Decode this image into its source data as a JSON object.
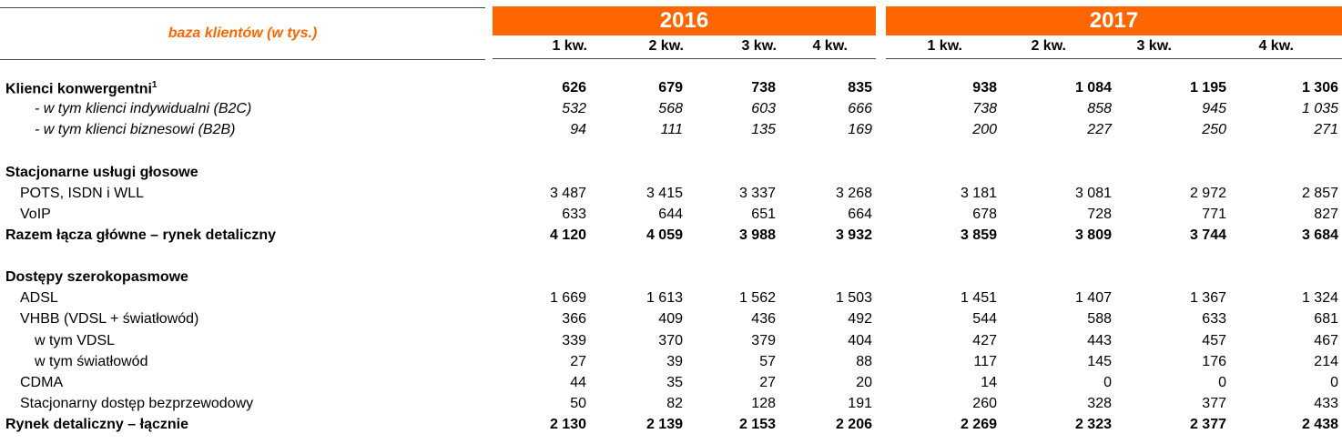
{
  "header": {
    "title": "baza klientów (w tys.)",
    "years": [
      "2016",
      "2017"
    ],
    "quarters": [
      "1 kw.",
      "2 kw.",
      "3 kw.",
      "4 kw.",
      "1 kw.",
      "2 kw.",
      "3 kw.",
      "4 kw."
    ]
  },
  "rows": [
    {
      "label": "Klienci konwergentni",
      "sup": "1",
      "style": "bold",
      "level": 0,
      "values": [
        "626",
        "679",
        "738",
        "835",
        "938",
        "1 084",
        "1 195",
        "1 306"
      ]
    },
    {
      "label": "- w tym klienci indywidualni (B2C)",
      "style": "italic",
      "level": 2,
      "values": [
        "532",
        "568",
        "603",
        "666",
        "738",
        "858",
        "945",
        "1 035"
      ]
    },
    {
      "label": "- w tym klienci biznesowi (B2B)",
      "style": "italic",
      "level": 2,
      "values": [
        "94",
        "111",
        "135",
        "169",
        "200",
        "227",
        "250",
        "271"
      ]
    },
    {
      "label": "Stacjonarne usługi głosowe",
      "style": "bold",
      "level": 0,
      "values": []
    },
    {
      "label": "POTS, ISDN i WLL",
      "style": "normal",
      "level": 1,
      "values": [
        "3 487",
        "3 415",
        "3 337",
        "3 268",
        "3 181",
        "3 081",
        "2 972",
        "2 857"
      ]
    },
    {
      "label": "VoIP",
      "style": "normal",
      "level": 1,
      "values": [
        "633",
        "644",
        "651",
        "664",
        "678",
        "728",
        "771",
        "827"
      ]
    },
    {
      "label": "Razem łącza główne – rynek detaliczny",
      "style": "bold",
      "level": 0,
      "values": [
        "4 120",
        "4 059",
        "3 988",
        "3 932",
        "3 859",
        "3 809",
        "3 744",
        "3 684"
      ]
    },
    {
      "label": "Dostępy szerokopasmowe",
      "style": "bold",
      "level": 0,
      "values": []
    },
    {
      "label": "ADSL",
      "style": "normal",
      "level": 1,
      "values": [
        "1 669",
        "1 613",
        "1 562",
        "1 503",
        "1 451",
        "1 407",
        "1 367",
        "1 324"
      ]
    },
    {
      "label": "VHBB (VDSL + światłowód)",
      "style": "normal",
      "level": 1,
      "values": [
        "366",
        "409",
        "436",
        "492",
        "544",
        "588",
        "633",
        "681"
      ]
    },
    {
      "label": "w tym VDSL",
      "style": "normal",
      "level": 2,
      "values": [
        "339",
        "370",
        "379",
        "404",
        "427",
        "443",
        "457",
        "467"
      ]
    },
    {
      "label": "w tym światłowód",
      "style": "normal",
      "level": 2,
      "values": [
        "27",
        "39",
        "57",
        "88",
        "117",
        "145",
        "176",
        "214"
      ]
    },
    {
      "label": "CDMA",
      "style": "normal",
      "level": 1,
      "values": [
        "44",
        "35",
        "27",
        "20",
        "14",
        "0",
        "0",
        "0"
      ]
    },
    {
      "label": "Stacjonarny dostęp bezprzewodowy",
      "style": "normal",
      "level": 1,
      "values": [
        "50",
        "82",
        "128",
        "191",
        "260",
        "328",
        "377",
        "433"
      ]
    },
    {
      "label": "Rynek detaliczny – łącznie",
      "style": "bold",
      "level": 0,
      "values": [
        "2 130",
        "2 139",
        "2 153",
        "2 206",
        "2 269",
        "2 323",
        "2 377",
        "2 438"
      ]
    }
  ],
  "colors": {
    "accent": "#ff6600"
  }
}
